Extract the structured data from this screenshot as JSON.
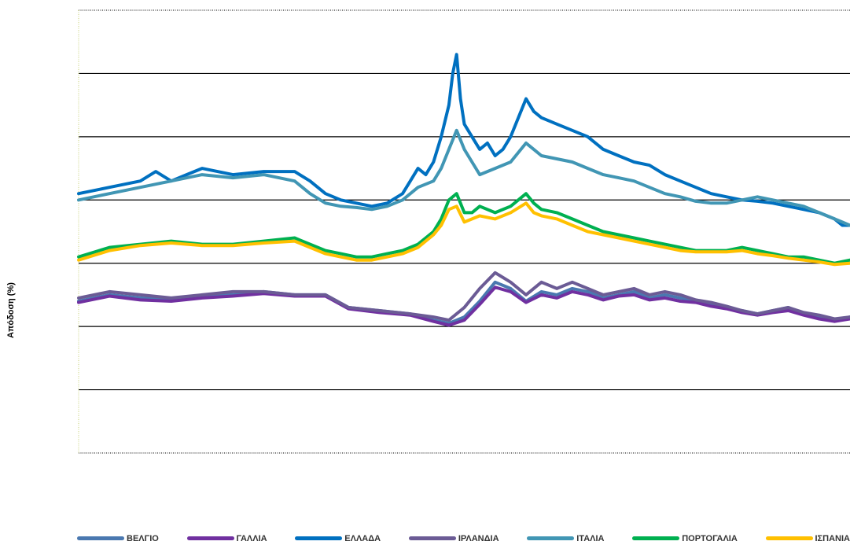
{
  "chart_data": {
    "type": "line",
    "title": "",
    "xlabel": "",
    "ylabel": "Απόδοση (%)",
    "ylim": [
      0,
      7
    ],
    "grid": true,
    "x_index_range": [
      0,
      200
    ],
    "series": [
      {
        "name": "ΒΕΛΓΙΟ",
        "color": "#4a78b0",
        "values": [
          [
            0,
            2.4
          ],
          [
            8,
            2.5
          ],
          [
            16,
            2.45
          ],
          [
            24,
            2.42
          ],
          [
            32,
            2.48
          ],
          [
            40,
            2.5
          ],
          [
            48,
            2.55
          ],
          [
            56,
            2.5
          ],
          [
            64,
            2.5
          ],
          [
            70,
            2.3
          ],
          [
            78,
            2.25
          ],
          [
            86,
            2.2
          ],
          [
            92,
            2.1
          ],
          [
            96,
            2.05
          ],
          [
            100,
            2.15
          ],
          [
            104,
            2.4
          ],
          [
            108,
            2.7
          ],
          [
            112,
            2.6
          ],
          [
            116,
            2.4
          ],
          [
            120,
            2.55
          ],
          [
            124,
            2.5
          ],
          [
            128,
            2.6
          ],
          [
            132,
            2.55
          ],
          [
            136,
            2.45
          ],
          [
            140,
            2.5
          ],
          [
            144,
            2.55
          ],
          [
            148,
            2.45
          ],
          [
            152,
            2.5
          ],
          [
            156,
            2.45
          ],
          [
            160,
            2.4
          ],
          [
            164,
            2.35
          ],
          [
            168,
            2.3
          ],
          [
            172,
            2.25
          ],
          [
            176,
            2.2
          ],
          [
            180,
            2.25
          ],
          [
            184,
            2.3
          ],
          [
            188,
            2.2
          ],
          [
            192,
            2.15
          ],
          [
            196,
            2.1
          ],
          [
            200,
            2.15
          ]
        ]
      },
      {
        "name": "ΓΑΛΛΙΑ",
        "color": "#7030a0",
        "values": [
          [
            0,
            2.38
          ],
          [
            8,
            2.48
          ],
          [
            16,
            2.42
          ],
          [
            24,
            2.4
          ],
          [
            32,
            2.45
          ],
          [
            40,
            2.48
          ],
          [
            48,
            2.52
          ],
          [
            56,
            2.48
          ],
          [
            64,
            2.48
          ],
          [
            70,
            2.28
          ],
          [
            78,
            2.22
          ],
          [
            86,
            2.18
          ],
          [
            92,
            2.08
          ],
          [
            96,
            2.02
          ],
          [
            100,
            2.1
          ],
          [
            104,
            2.35
          ],
          [
            108,
            2.62
          ],
          [
            112,
            2.55
          ],
          [
            116,
            2.38
          ],
          [
            120,
            2.5
          ],
          [
            124,
            2.45
          ],
          [
            128,
            2.55
          ],
          [
            132,
            2.5
          ],
          [
            136,
            2.42
          ],
          [
            140,
            2.48
          ],
          [
            144,
            2.5
          ],
          [
            148,
            2.42
          ],
          [
            152,
            2.45
          ],
          [
            156,
            2.4
          ],
          [
            160,
            2.38
          ],
          [
            164,
            2.32
          ],
          [
            168,
            2.28
          ],
          [
            172,
            2.22
          ],
          [
            176,
            2.18
          ],
          [
            180,
            2.22
          ],
          [
            184,
            2.25
          ],
          [
            188,
            2.18
          ],
          [
            192,
            2.12
          ],
          [
            196,
            2.08
          ],
          [
            200,
            2.12
          ]
        ]
      },
      {
        "name": "ΕΛΛΑΔΑ",
        "color": "#0070c0",
        "values": [
          [
            0,
            4.1
          ],
          [
            8,
            4.2
          ],
          [
            16,
            4.3
          ],
          [
            20,
            4.45
          ],
          [
            24,
            4.3
          ],
          [
            28,
            4.4
          ],
          [
            32,
            4.5
          ],
          [
            40,
            4.4
          ],
          [
            48,
            4.45
          ],
          [
            56,
            4.45
          ],
          [
            60,
            4.3
          ],
          [
            64,
            4.1
          ],
          [
            68,
            4.0
          ],
          [
            72,
            3.95
          ],
          [
            76,
            3.9
          ],
          [
            80,
            3.95
          ],
          [
            84,
            4.1
          ],
          [
            86,
            4.3
          ],
          [
            88,
            4.5
          ],
          [
            90,
            4.4
          ],
          [
            92,
            4.6
          ],
          [
            94,
            5.0
          ],
          [
            96,
            5.5
          ],
          [
            97,
            6.0
          ],
          [
            98,
            6.3
          ],
          [
            99,
            5.6
          ],
          [
            100,
            5.2
          ],
          [
            102,
            5.0
          ],
          [
            104,
            4.8
          ],
          [
            106,
            4.9
          ],
          [
            108,
            4.7
          ],
          [
            110,
            4.8
          ],
          [
            112,
            5.0
          ],
          [
            114,
            5.3
          ],
          [
            116,
            5.6
          ],
          [
            118,
            5.4
          ],
          [
            120,
            5.3
          ],
          [
            124,
            5.2
          ],
          [
            128,
            5.1
          ],
          [
            132,
            5.0
          ],
          [
            136,
            4.8
          ],
          [
            140,
            4.7
          ],
          [
            144,
            4.6
          ],
          [
            148,
            4.55
          ],
          [
            152,
            4.4
          ],
          [
            156,
            4.3
          ],
          [
            160,
            4.2
          ],
          [
            164,
            4.1
          ],
          [
            168,
            4.05
          ],
          [
            172,
            4.0
          ],
          [
            176,
            3.98
          ],
          [
            180,
            3.95
          ],
          [
            184,
            3.9
          ],
          [
            188,
            3.85
          ],
          [
            192,
            3.8
          ],
          [
            196,
            3.7
          ],
          [
            198,
            3.6
          ],
          [
            200,
            3.6
          ]
        ]
      },
      {
        "name": "ΙΡΛΑΝΔΙΑ",
        "color": "#6b5b95",
        "values": [
          [
            0,
            2.45
          ],
          [
            8,
            2.55
          ],
          [
            16,
            2.5
          ],
          [
            24,
            2.45
          ],
          [
            32,
            2.5
          ],
          [
            40,
            2.55
          ],
          [
            48,
            2.55
          ],
          [
            56,
            2.5
          ],
          [
            64,
            2.5
          ],
          [
            70,
            2.3
          ],
          [
            78,
            2.25
          ],
          [
            86,
            2.2
          ],
          [
            92,
            2.15
          ],
          [
            96,
            2.1
          ],
          [
            100,
            2.3
          ],
          [
            104,
            2.6
          ],
          [
            108,
            2.85
          ],
          [
            112,
            2.7
          ],
          [
            116,
            2.5
          ],
          [
            120,
            2.7
          ],
          [
            124,
            2.6
          ],
          [
            128,
            2.7
          ],
          [
            132,
            2.6
          ],
          [
            136,
            2.5
          ],
          [
            140,
            2.55
          ],
          [
            144,
            2.6
          ],
          [
            148,
            2.5
          ],
          [
            152,
            2.55
          ],
          [
            156,
            2.5
          ],
          [
            160,
            2.42
          ],
          [
            164,
            2.38
          ],
          [
            168,
            2.32
          ],
          [
            172,
            2.25
          ],
          [
            176,
            2.2
          ],
          [
            180,
            2.25
          ],
          [
            184,
            2.3
          ],
          [
            188,
            2.22
          ],
          [
            192,
            2.18
          ],
          [
            196,
            2.12
          ],
          [
            200,
            2.15
          ]
        ]
      },
      {
        "name": "ΙΤΑΛΙΑ",
        "color": "#4196b4",
        "values": [
          [
            0,
            4.0
          ],
          [
            8,
            4.1
          ],
          [
            16,
            4.2
          ],
          [
            24,
            4.3
          ],
          [
            32,
            4.4
          ],
          [
            40,
            4.35
          ],
          [
            48,
            4.4
          ],
          [
            56,
            4.3
          ],
          [
            60,
            4.1
          ],
          [
            64,
            3.95
          ],
          [
            68,
            3.9
          ],
          [
            72,
            3.88
          ],
          [
            76,
            3.85
          ],
          [
            80,
            3.9
          ],
          [
            84,
            4.0
          ],
          [
            88,
            4.2
          ],
          [
            92,
            4.3
          ],
          [
            94,
            4.5
          ],
          [
            96,
            4.8
          ],
          [
            98,
            5.1
          ],
          [
            100,
            4.8
          ],
          [
            102,
            4.6
          ],
          [
            104,
            4.4
          ],
          [
            108,
            4.5
          ],
          [
            112,
            4.6
          ],
          [
            116,
            4.9
          ],
          [
            118,
            4.8
          ],
          [
            120,
            4.7
          ],
          [
            124,
            4.65
          ],
          [
            128,
            4.6
          ],
          [
            132,
            4.5
          ],
          [
            136,
            4.4
          ],
          [
            140,
            4.35
          ],
          [
            144,
            4.3
          ],
          [
            148,
            4.2
          ],
          [
            152,
            4.1
          ],
          [
            156,
            4.05
          ],
          [
            160,
            3.98
          ],
          [
            164,
            3.95
          ],
          [
            168,
            3.95
          ],
          [
            172,
            4.0
          ],
          [
            176,
            4.05
          ],
          [
            180,
            4.0
          ],
          [
            184,
            3.95
          ],
          [
            188,
            3.9
          ],
          [
            192,
            3.8
          ],
          [
            196,
            3.7
          ],
          [
            198,
            3.65
          ],
          [
            200,
            3.6
          ]
        ]
      },
      {
        "name": "ΠΟΡΤΟΓΑΛΙΑ",
        "color": "#00b050",
        "values": [
          [
            0,
            3.1
          ],
          [
            8,
            3.25
          ],
          [
            16,
            3.3
          ],
          [
            24,
            3.35
          ],
          [
            32,
            3.3
          ],
          [
            40,
            3.3
          ],
          [
            48,
            3.35
          ],
          [
            56,
            3.4
          ],
          [
            60,
            3.3
          ],
          [
            64,
            3.2
          ],
          [
            68,
            3.15
          ],
          [
            72,
            3.1
          ],
          [
            76,
            3.1
          ],
          [
            80,
            3.15
          ],
          [
            84,
            3.2
          ],
          [
            88,
            3.3
          ],
          [
            92,
            3.5
          ],
          [
            94,
            3.7
          ],
          [
            96,
            4.0
          ],
          [
            98,
            4.1
          ],
          [
            100,
            3.8
          ],
          [
            102,
            3.8
          ],
          [
            104,
            3.9
          ],
          [
            108,
            3.8
          ],
          [
            112,
            3.9
          ],
          [
            116,
            4.1
          ],
          [
            118,
            3.95
          ],
          [
            120,
            3.85
          ],
          [
            124,
            3.8
          ],
          [
            128,
            3.7
          ],
          [
            132,
            3.6
          ],
          [
            136,
            3.5
          ],
          [
            140,
            3.45
          ],
          [
            144,
            3.4
          ],
          [
            148,
            3.35
          ],
          [
            152,
            3.3
          ],
          [
            156,
            3.25
          ],
          [
            160,
            3.2
          ],
          [
            164,
            3.2
          ],
          [
            168,
            3.2
          ],
          [
            172,
            3.25
          ],
          [
            176,
            3.2
          ],
          [
            180,
            3.15
          ],
          [
            184,
            3.1
          ],
          [
            188,
            3.1
          ],
          [
            192,
            3.05
          ],
          [
            196,
            3.0
          ],
          [
            200,
            3.05
          ]
        ]
      },
      {
        "name": "ΙΣΠΑΝΙΑ",
        "color": "#ffc000",
        "values": [
          [
            0,
            3.05
          ],
          [
            8,
            3.2
          ],
          [
            16,
            3.28
          ],
          [
            24,
            3.32
          ],
          [
            32,
            3.28
          ],
          [
            40,
            3.28
          ],
          [
            48,
            3.32
          ],
          [
            56,
            3.35
          ],
          [
            60,
            3.25
          ],
          [
            64,
            3.15
          ],
          [
            68,
            3.1
          ],
          [
            72,
            3.05
          ],
          [
            76,
            3.05
          ],
          [
            80,
            3.1
          ],
          [
            84,
            3.15
          ],
          [
            88,
            3.25
          ],
          [
            92,
            3.45
          ],
          [
            94,
            3.6
          ],
          [
            96,
            3.85
          ],
          [
            98,
            3.9
          ],
          [
            100,
            3.65
          ],
          [
            102,
            3.7
          ],
          [
            104,
            3.75
          ],
          [
            108,
            3.7
          ],
          [
            112,
            3.8
          ],
          [
            116,
            3.95
          ],
          [
            118,
            3.8
          ],
          [
            120,
            3.75
          ],
          [
            124,
            3.7
          ],
          [
            128,
            3.6
          ],
          [
            132,
            3.5
          ],
          [
            136,
            3.45
          ],
          [
            140,
            3.4
          ],
          [
            144,
            3.35
          ],
          [
            148,
            3.3
          ],
          [
            152,
            3.25
          ],
          [
            156,
            3.2
          ],
          [
            160,
            3.18
          ],
          [
            164,
            3.18
          ],
          [
            168,
            3.18
          ],
          [
            172,
            3.2
          ],
          [
            176,
            3.15
          ],
          [
            180,
            3.12
          ],
          [
            184,
            3.08
          ],
          [
            188,
            3.05
          ],
          [
            192,
            3.02
          ],
          [
            196,
            2.98
          ],
          [
            200,
            3.0
          ]
        ]
      }
    ]
  }
}
